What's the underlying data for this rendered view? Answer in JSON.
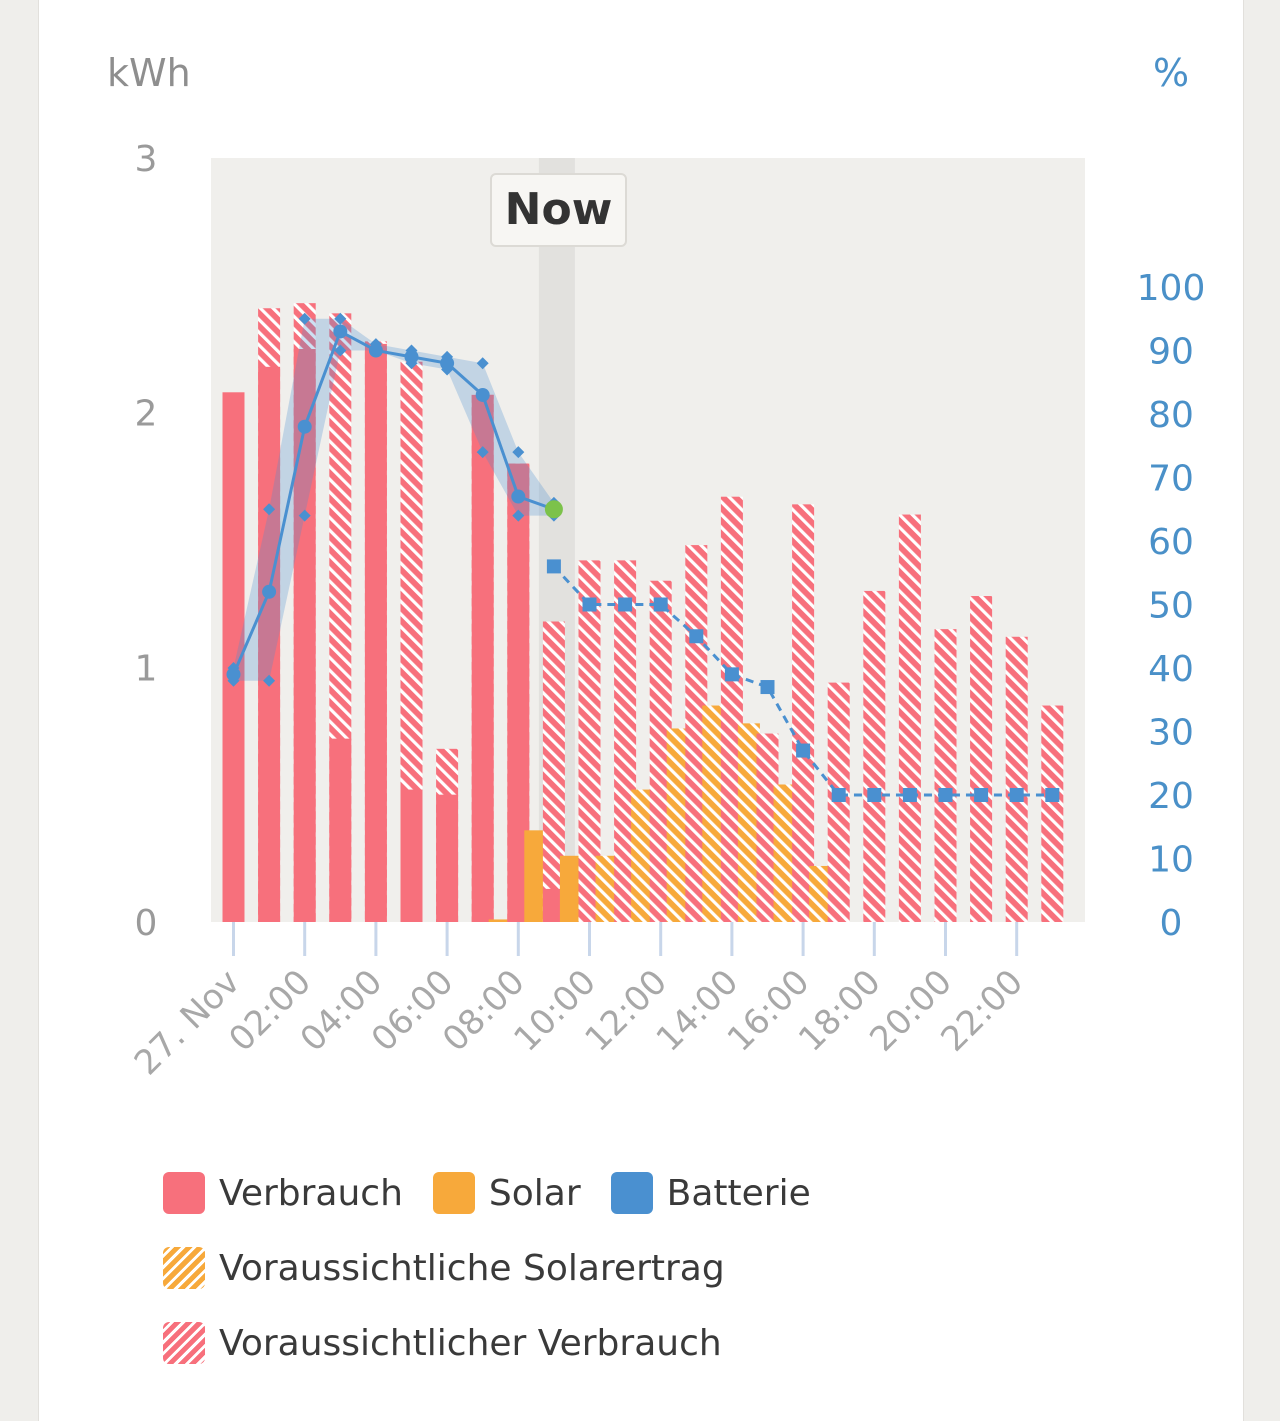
{
  "colors": {
    "verbrauch": "#f7707c",
    "solar": "#f7a93b",
    "batterie": "#4a90d0",
    "now_dot": "#7cc24a",
    "plot_bg": "#f0efec",
    "now_band": "#e2e1de"
  },
  "now_label": "Now",
  "legend": {
    "verbrauch": "Verbrauch",
    "solar": "Solar",
    "batterie": "Batterie",
    "forecast_solar": "Voraussichtliche Solarertrag",
    "forecast_verbrauch": "Voraussichtlicher Verbrauch"
  },
  "chart_data": {
    "type": "bar",
    "left_axis": {
      "unit": "kWh",
      "ticks": [
        "0",
        "1",
        "2",
        "3"
      ],
      "range": [
        0,
        3
      ]
    },
    "right_axis": {
      "unit": "%",
      "ticks": [
        "0",
        "10",
        "20",
        "30",
        "40",
        "50",
        "60",
        "70",
        "80",
        "90",
        "100"
      ],
      "range": [
        0,
        100
      ]
    },
    "x_tick_labels": [
      "27. Nov",
      "02:00",
      "04:00",
      "06:00",
      "08:00",
      "10:00",
      "12:00",
      "14:00",
      "16:00",
      "18:00",
      "20:00",
      "22:00"
    ],
    "x_tick_hours": [
      0,
      2,
      4,
      6,
      8,
      10,
      12,
      14,
      16,
      18,
      20,
      22
    ],
    "now_hour": 9,
    "hours": [
      0,
      1,
      2,
      3,
      4,
      5,
      6,
      7,
      8,
      9,
      10,
      11,
      12,
      13,
      14,
      15,
      16,
      17,
      18,
      19,
      20,
      21,
      22,
      23
    ],
    "series": [
      {
        "name": "Verbrauch",
        "values": [
          2.08,
          2.18,
          2.25,
          0.72,
          2.27,
          0.52,
          0.5,
          2.07,
          1.8,
          0.13,
          0,
          0,
          0,
          0,
          0,
          0,
          0,
          0,
          0,
          0,
          0,
          0,
          0,
          0
        ]
      },
      {
        "name": "Voraussichtlicher Verbrauch",
        "values": [
          0,
          2.41,
          2.43,
          2.39,
          2.28,
          2.2,
          0.68,
          2.07,
          1.8,
          1.18,
          1.42,
          1.42,
          1.34,
          1.48,
          1.67,
          0.74,
          1.64,
          0.94,
          1.3,
          1.6,
          1.15,
          1.28,
          1.12,
          0.85
        ]
      },
      {
        "name": "Solar",
        "values": [
          0,
          0,
          0,
          0,
          0,
          0,
          0,
          0.01,
          0.36,
          0.26,
          0,
          0,
          0,
          0,
          0,
          0,
          0,
          0,
          0,
          0,
          0,
          0,
          0,
          0
        ]
      },
      {
        "name": "Voraussichtliche Solarertrag",
        "values": [
          0,
          0,
          0,
          0,
          0,
          0,
          0,
          0,
          0,
          0,
          0.26,
          0.52,
          0.76,
          0.85,
          0.78,
          0.54,
          0.22,
          0,
          0,
          0,
          0,
          0,
          0,
          0
        ]
      },
      {
        "name": "Batterie",
        "hours": [
          0,
          1,
          2,
          3,
          4,
          5,
          6,
          7,
          8,
          9
        ],
        "values": [
          39,
          52,
          78,
          93,
          90,
          89,
          88,
          83,
          67,
          65
        ]
      },
      {
        "name": "Batterie",
        "hours": [
          9,
          10,
          11,
          12,
          13,
          14,
          15,
          16,
          17,
          18,
          19,
          20,
          21,
          22,
          23
        ],
        "values": [
          56,
          50,
          50,
          50,
          45,
          39,
          37,
          27,
          20,
          20,
          20,
          20,
          20,
          20,
          20
        ]
      }
    ],
    "battery_band": {
      "hours": [
        0,
        1,
        2,
        3,
        4,
        5,
        6,
        7,
        8,
        9
      ],
      "upper": [
        40,
        65,
        95,
        95,
        91,
        90,
        89,
        88,
        74,
        66
      ],
      "lower": [
        38,
        38,
        64,
        90,
        90,
        88,
        87,
        74,
        64,
        64
      ]
    }
  }
}
